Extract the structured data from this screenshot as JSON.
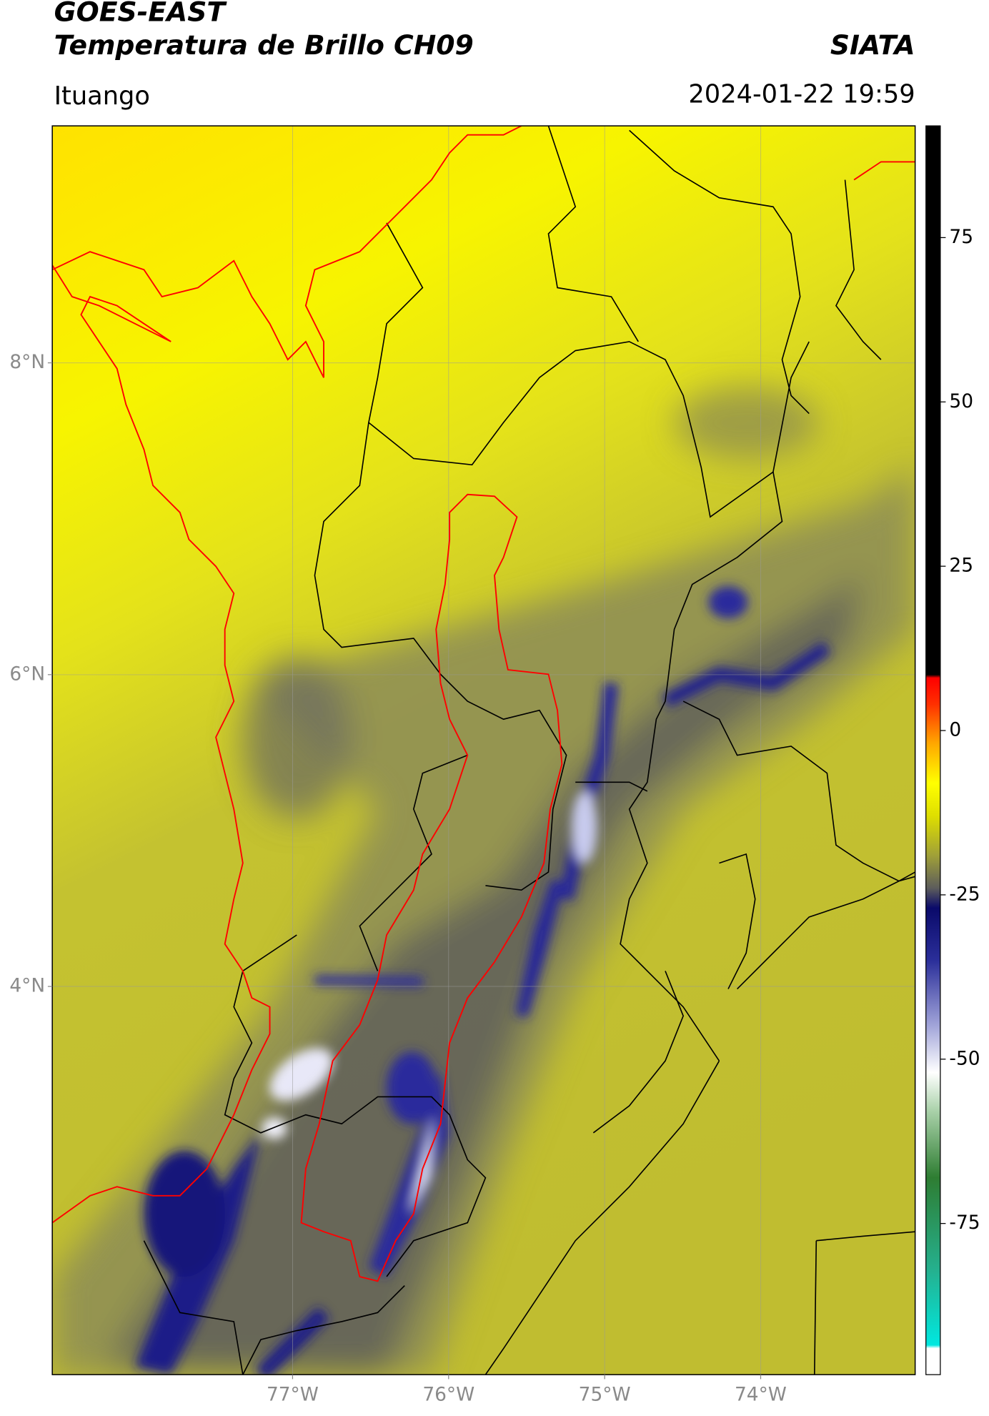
{
  "chart_data": {
    "type": "map",
    "title": "GOES-EAST",
    "subtitle": "Temperatura de Brillo CH09",
    "source": "SIATA",
    "region": "Ituango",
    "timestamp": "2024-01-22 19:59",
    "xlim": [
      -78.54,
      -73.01
    ],
    "ylim": [
      1.51,
      9.52
    ],
    "xticks": [
      {
        "value": -77,
        "label": "77°W"
      },
      {
        "value": -76,
        "label": "76°W"
      },
      {
        "value": -75,
        "label": "75°W"
      },
      {
        "value": -74,
        "label": "74°W"
      }
    ],
    "yticks": [
      {
        "value": 8,
        "label": "8°N"
      },
      {
        "value": 6,
        "label": "6°N"
      },
      {
        "value": 4,
        "label": "4°N"
      }
    ],
    "grid": true,
    "colorbar": {
      "lim": [
        -98,
        92
      ],
      "ticks": [
        75,
        50,
        25,
        0,
        -25,
        -50,
        -75
      ],
      "stops": [
        {
          "value": -98,
          "color": "#ffffff"
        },
        {
          "value": -94,
          "color": "#ffffff"
        },
        {
          "value": -93.5,
          "color": "#00e8e0"
        },
        {
          "value": -82,
          "color": "#25b08e"
        },
        {
          "value": -68,
          "color": "#2e7d32"
        },
        {
          "value": -58,
          "color": "#a8d0a8"
        },
        {
          "value": -52,
          "color": "#ffffff"
        },
        {
          "value": -45,
          "color": "#a3a6da"
        },
        {
          "value": -35,
          "color": "#2b2f9a"
        },
        {
          "value": -27,
          "color": "#0a0a6a"
        },
        {
          "value": -24,
          "color": "#5c5c5c"
        },
        {
          "value": -19,
          "color": "#a0a038"
        },
        {
          "value": -13,
          "color": "#dede00"
        },
        {
          "value": -8,
          "color": "#ffff00"
        },
        {
          "value": -2,
          "color": "#ffa800"
        },
        {
          "value": 4,
          "color": "#ff3000"
        },
        {
          "value": 8,
          "color": "#ff0000"
        },
        {
          "value": 8.5,
          "color": "#000000"
        },
        {
          "value": 92,
          "color": "#000000"
        }
      ]
    }
  }
}
